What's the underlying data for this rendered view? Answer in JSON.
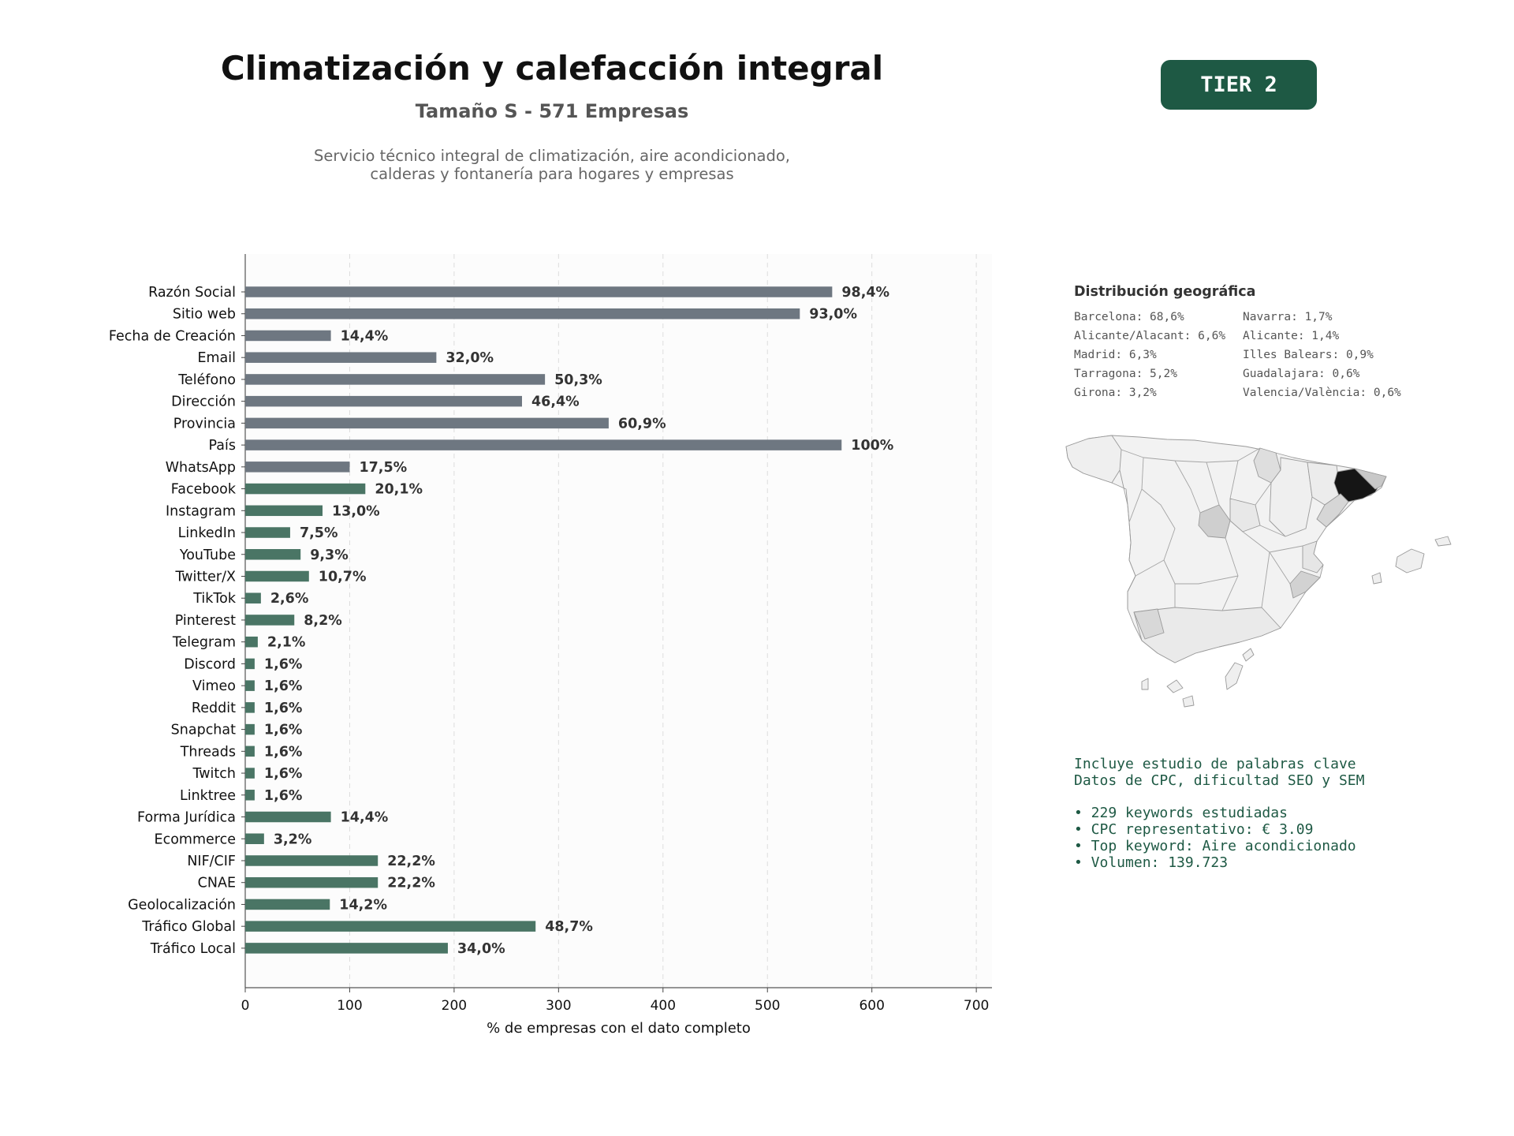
{
  "header": {
    "title": "Climatización y calefacción integral",
    "subtitle": "Tamaño S - 571 Empresas",
    "description_lines": [
      "Servicio técnico integral de climatización, aire acondicionado,",
      "calderas y fontanería para hogares y empresas"
    ],
    "tier_label": "TIER 2"
  },
  "colors": {
    "basic_bar": "#6e7781",
    "social_bar": "#4a7565",
    "accent": "#1e5944",
    "label_text": "#333333",
    "grid": "#dddddd"
  },
  "chart_data": {
    "type": "bar",
    "orientation": "horizontal",
    "xlabel": "% de empresas con el dato completo",
    "xlim": [
      0,
      715
    ],
    "xticks": [
      0,
      100,
      200,
      300,
      400,
      500,
      600,
      700
    ],
    "grid": true,
    "categories": [
      "Razón Social",
      "Sitio web",
      "Fecha de Creación",
      "Email",
      "Teléfono",
      "Dirección",
      "Provincia",
      "País",
      "WhatsApp",
      "Facebook",
      "Instagram",
      "LinkedIn",
      "YouTube",
      "Twitter/X",
      "TikTok",
      "Pinterest",
      "Telegram",
      "Discord",
      "Vimeo",
      "Reddit",
      "Snapchat",
      "Threads",
      "Twitch",
      "Linktree",
      "Forma Jurídica",
      "Ecommerce",
      "NIF/CIF",
      "CNAE",
      "Geolocalización",
      "Tráfico Global",
      "Tráfico Local"
    ],
    "values": [
      562,
      531,
      82,
      183,
      287,
      265,
      348,
      571,
      100,
      115,
      74,
      43,
      53,
      61,
      15,
      47,
      12,
      9,
      9,
      9,
      9,
      9,
      9,
      9,
      82,
      18,
      127,
      127,
      81,
      278,
      194
    ],
    "data_labels": [
      "98,4%",
      "93,0%",
      "14,4%",
      "32,0%",
      "50,3%",
      "46,4%",
      "60,9%",
      "100%",
      "17,5%",
      "20,1%",
      "13,0%",
      "7,5%",
      "9,3%",
      "10,7%",
      "2,6%",
      "8,2%",
      "2,1%",
      "1,6%",
      "1,6%",
      "1,6%",
      "1,6%",
      "1,6%",
      "1,6%",
      "1,6%",
      "14,4%",
      "3,2%",
      "22,2%",
      "22,2%",
      "14,2%",
      "48,7%",
      "34,0%"
    ],
    "bar_groups": [
      "basic",
      "basic",
      "basic",
      "basic",
      "basic",
      "basic",
      "basic",
      "basic",
      "basic",
      "social",
      "social",
      "social",
      "social",
      "social",
      "social",
      "social",
      "social",
      "social",
      "social",
      "social",
      "social",
      "social",
      "social",
      "social",
      "social",
      "social",
      "social",
      "social",
      "social",
      "social",
      "social"
    ]
  },
  "geo": {
    "title": "Distribución geográfica",
    "regions": [
      "Barcelona: 68,6%",
      "Navarra: 1,7%",
      "Alicante/Alacant: 6,6%",
      "Alicante: 1,4%",
      "Madrid: 6,3%",
      "Illes Balears: 0,9%",
      "Tarragona: 5,2%",
      "Guadalajara: 0,6%",
      "Girona: 3,2%",
      "Valencia/València: 0,6%"
    ]
  },
  "keywords": {
    "intro_lines": [
      "Incluye estudio de palabras clave",
      "Datos de CPC, dificultad SEO y SEM"
    ],
    "bullets": [
      "• 229 keywords estudiadas",
      "• CPC representativo: € 3.09",
      "• Top keyword: Aire acondicionado",
      "• Volumen: 139.723"
    ]
  }
}
